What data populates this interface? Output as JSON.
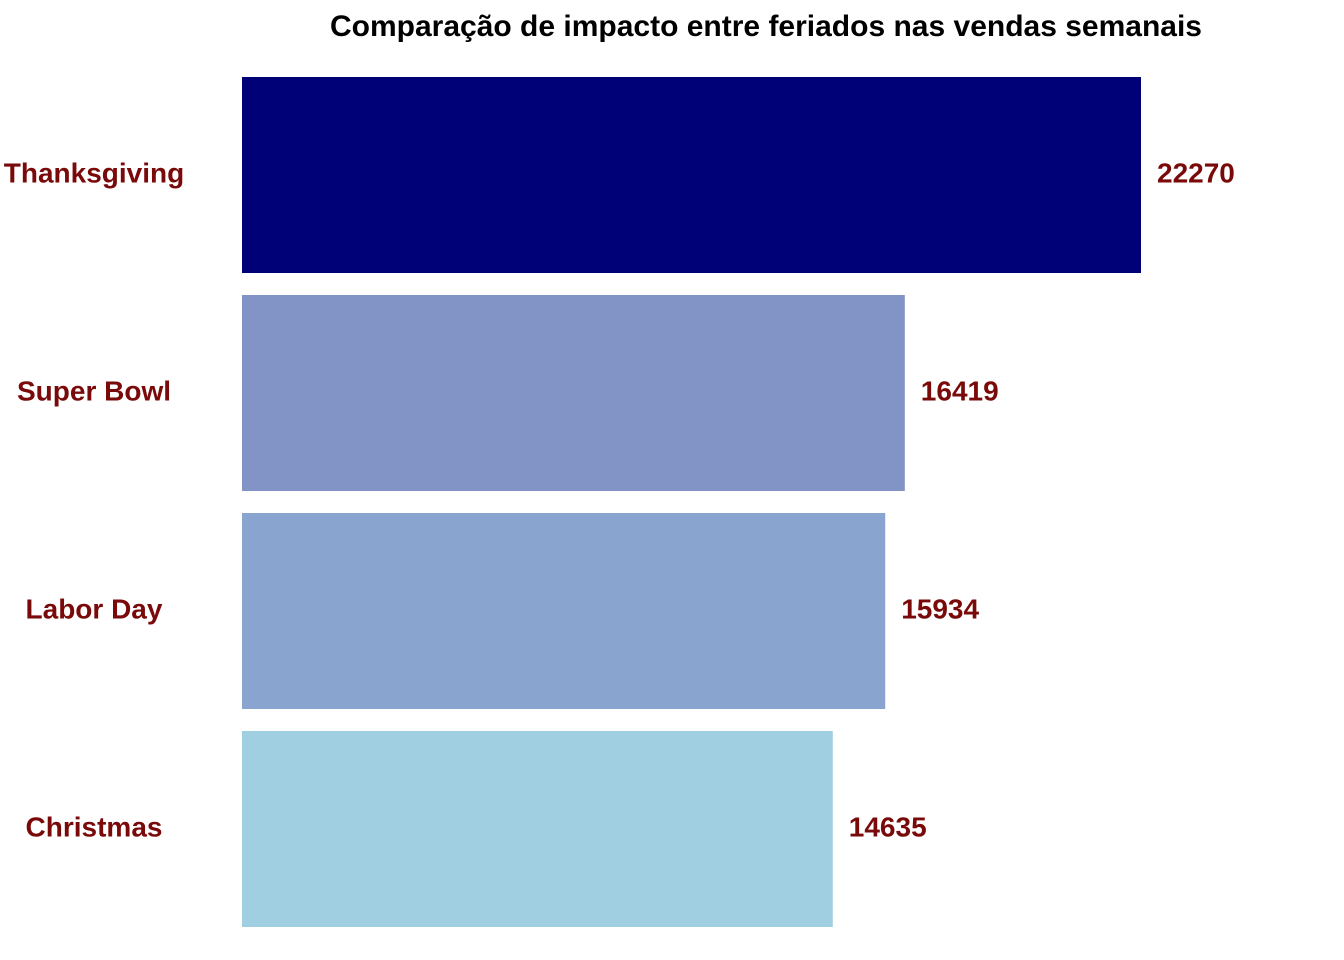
{
  "chart_data": {
    "type": "bar",
    "orientation": "horizontal",
    "title": "Comparação de impacto entre feriados nas vendas semanais",
    "categories": [
      "Thanksgiving",
      "Super Bowl",
      "Labor Day",
      "Christmas"
    ],
    "values": [
      22270,
      16419,
      15934,
      14635
    ],
    "colors": [
      "#000077",
      "#8194c5",
      "#89a5cf",
      "#9fcfe0"
    ],
    "label_color": "#7a0a0a",
    "grid": false
  }
}
